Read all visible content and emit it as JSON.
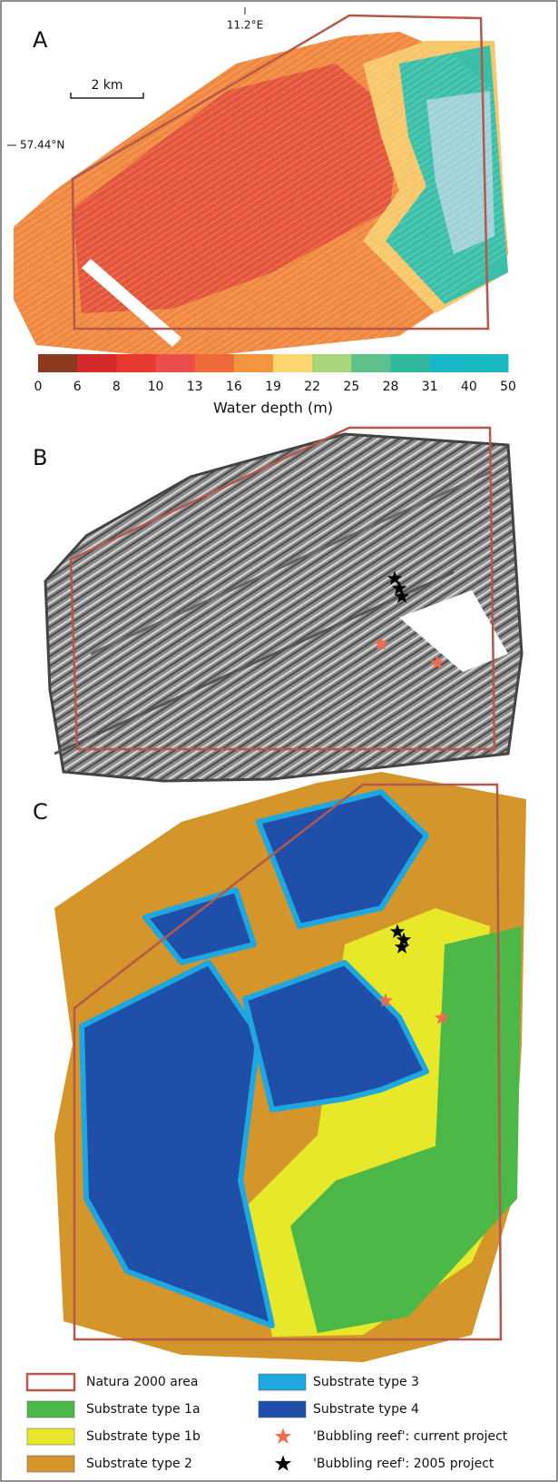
{
  "panels": {
    "a": {
      "label": "A",
      "longitude": "11.2°E",
      "latitude": "57.44°N",
      "scale": "2 km"
    },
    "b": {
      "label": "B"
    },
    "c": {
      "label": "C"
    }
  },
  "colorbar": {
    "title": "Water depth (m)",
    "ticks": [
      0,
      6,
      8,
      10,
      13,
      16,
      19,
      22,
      25,
      28,
      31,
      40,
      50
    ],
    "colors": [
      "#8b3a1f",
      "#d42a2a",
      "#e63a30",
      "#ec4d4a",
      "#ee6a3a",
      "#f3953f",
      "#fbd56e",
      "#a8d47a",
      "#5ec08a",
      "#2fb89a",
      "#19b8c8",
      "#1ab8c0"
    ]
  },
  "legend": [
    {
      "label": "Natura 2000 area",
      "kind": "outline",
      "color": "#b5574a"
    },
    {
      "label": "Substrate type 1a",
      "kind": "swatch",
      "color": "#4cb848"
    },
    {
      "label": "Substrate type 1b",
      "kind": "swatch",
      "color": "#e8e82a"
    },
    {
      "label": "Substrate type 2",
      "kind": "swatch",
      "color": "#d4952a"
    },
    {
      "label": "Substrate type 3",
      "kind": "swatch",
      "color": "#1fa8e0"
    },
    {
      "label": "Substrate type 4",
      "kind": "swatch",
      "color": "#1f4fa8"
    },
    {
      "label": "'Bubbling reef': current project",
      "kind": "star",
      "color": "#f26a4f"
    },
    {
      "label": "'Bubbling reef': 2005 project",
      "kind": "star",
      "color": "#000000"
    }
  ]
}
